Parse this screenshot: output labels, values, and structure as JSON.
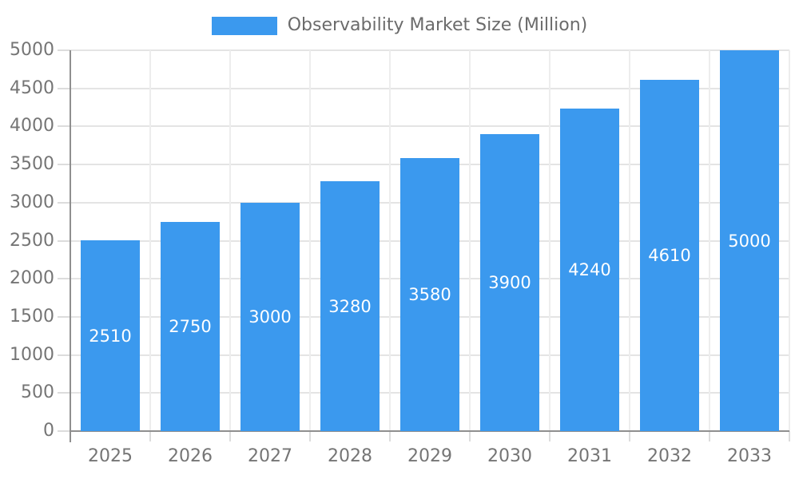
{
  "chart_data": {
    "type": "bar",
    "title": "Observability Market Size (Million)",
    "categories": [
      "2025",
      "2026",
      "2027",
      "2028",
      "2029",
      "2030",
      "2031",
      "2032",
      "2033"
    ],
    "values": [
      2510,
      2750,
      3000,
      3280,
      3580,
      3900,
      4240,
      4610,
      5000
    ],
    "xlabel": "",
    "ylabel": "",
    "ylim": [
      0,
      5000
    ],
    "ytick_step": 500,
    "ytick_labels": [
      "0",
      "500",
      "1000",
      "1500",
      "2000",
      "2500",
      "3000",
      "3500",
      "4000",
      "4500",
      "5000"
    ],
    "grid": true,
    "legend_position": "top",
    "bar_label_position": "inside-center"
  },
  "legend": {
    "label": "Observability Market Size (Million)"
  },
  "colors": {
    "bar": "#3B99EE",
    "bar_label": "#FFFFFF",
    "axis": "#8F8F8F",
    "grid_horizontal": "#E4E4E4",
    "grid_vertical": "#EDEDED",
    "tick": "#DCDCDC",
    "tick_label": "#757575",
    "legend_text": "#6B6B6B",
    "background": "#FFFFFF"
  }
}
